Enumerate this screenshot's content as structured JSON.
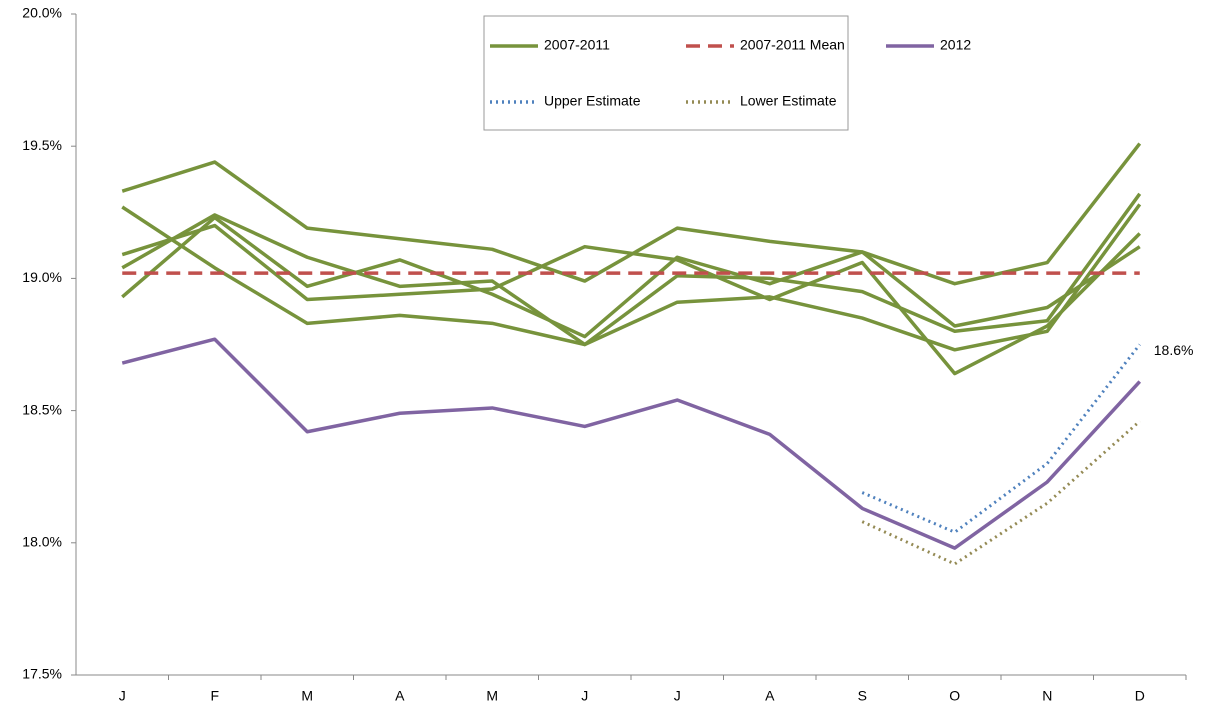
{
  "chart_data": {
    "type": "line",
    "categories": [
      "J",
      "F",
      "M",
      "A",
      "M",
      "J",
      "J",
      "A",
      "S",
      "O",
      "N",
      "D"
    ],
    "ylim": [
      17.5,
      20.0
    ],
    "yticks": [
      {
        "value": 17.5,
        "label": "17.5%"
      },
      {
        "value": 18.0,
        "label": "18.0%"
      },
      {
        "value": 18.5,
        "label": "18.5%"
      },
      {
        "value": 19.0,
        "label": "19.0%"
      },
      {
        "value": 19.5,
        "label": "19.5%"
      },
      {
        "value": 20.0,
        "label": "20.0%"
      }
    ],
    "grid": false,
    "legend": "top-right",
    "series": [
      {
        "name": "2007-2011",
        "color": "#77933c",
        "style": "solid",
        "values": [
          [
            19.33,
            19.44,
            19.19,
            19.15,
            19.11,
            18.99,
            19.19,
            19.14,
            19.1,
            18.98,
            19.06,
            19.51
          ],
          [
            19.04,
            19.24,
            19.08,
            18.97,
            18.99,
            18.75,
            19.01,
            19.0,
            18.95,
            18.8,
            18.84,
            19.32
          ],
          [
            19.27,
            19.04,
            18.83,
            18.86,
            18.83,
            18.75,
            18.91,
            18.93,
            18.85,
            18.73,
            18.8,
            19.28
          ],
          [
            19.09,
            19.2,
            18.92,
            18.94,
            18.96,
            19.12,
            19.07,
            18.92,
            19.06,
            18.64,
            18.82,
            19.17
          ],
          [
            18.93,
            19.23,
            18.97,
            19.07,
            18.94,
            18.78,
            19.08,
            18.98,
            19.1,
            18.82,
            18.89,
            19.12
          ]
        ]
      },
      {
        "name": "2007-2011 Mean",
        "color": "#c0504d",
        "style": "dashed",
        "values": [
          19.02,
          19.02,
          19.02,
          19.02,
          19.02,
          19.02,
          19.02,
          19.02,
          19.02,
          19.02,
          19.02,
          19.02
        ]
      },
      {
        "name": "2012",
        "color": "#8064a2",
        "style": "solid",
        "values": [
          18.68,
          18.77,
          18.42,
          18.49,
          18.51,
          18.44,
          18.54,
          18.41,
          18.13,
          17.98,
          18.23,
          18.61
        ],
        "value_labels": [
          null,
          null,
          null,
          null,
          null,
          null,
          null,
          null,
          null,
          null,
          null,
          "18.6%"
        ]
      },
      {
        "name": "Upper Estimate",
        "color": "#4f81bd",
        "style": "dotted",
        "values": [
          null,
          null,
          null,
          null,
          null,
          null,
          null,
          null,
          18.19,
          18.04,
          18.3,
          18.75
        ]
      },
      {
        "name": "Lower Estimate",
        "color": "#948a54",
        "style": "dotted",
        "values": [
          null,
          null,
          null,
          null,
          null,
          null,
          null,
          null,
          18.08,
          17.92,
          18.15,
          18.46
        ]
      }
    ]
  }
}
